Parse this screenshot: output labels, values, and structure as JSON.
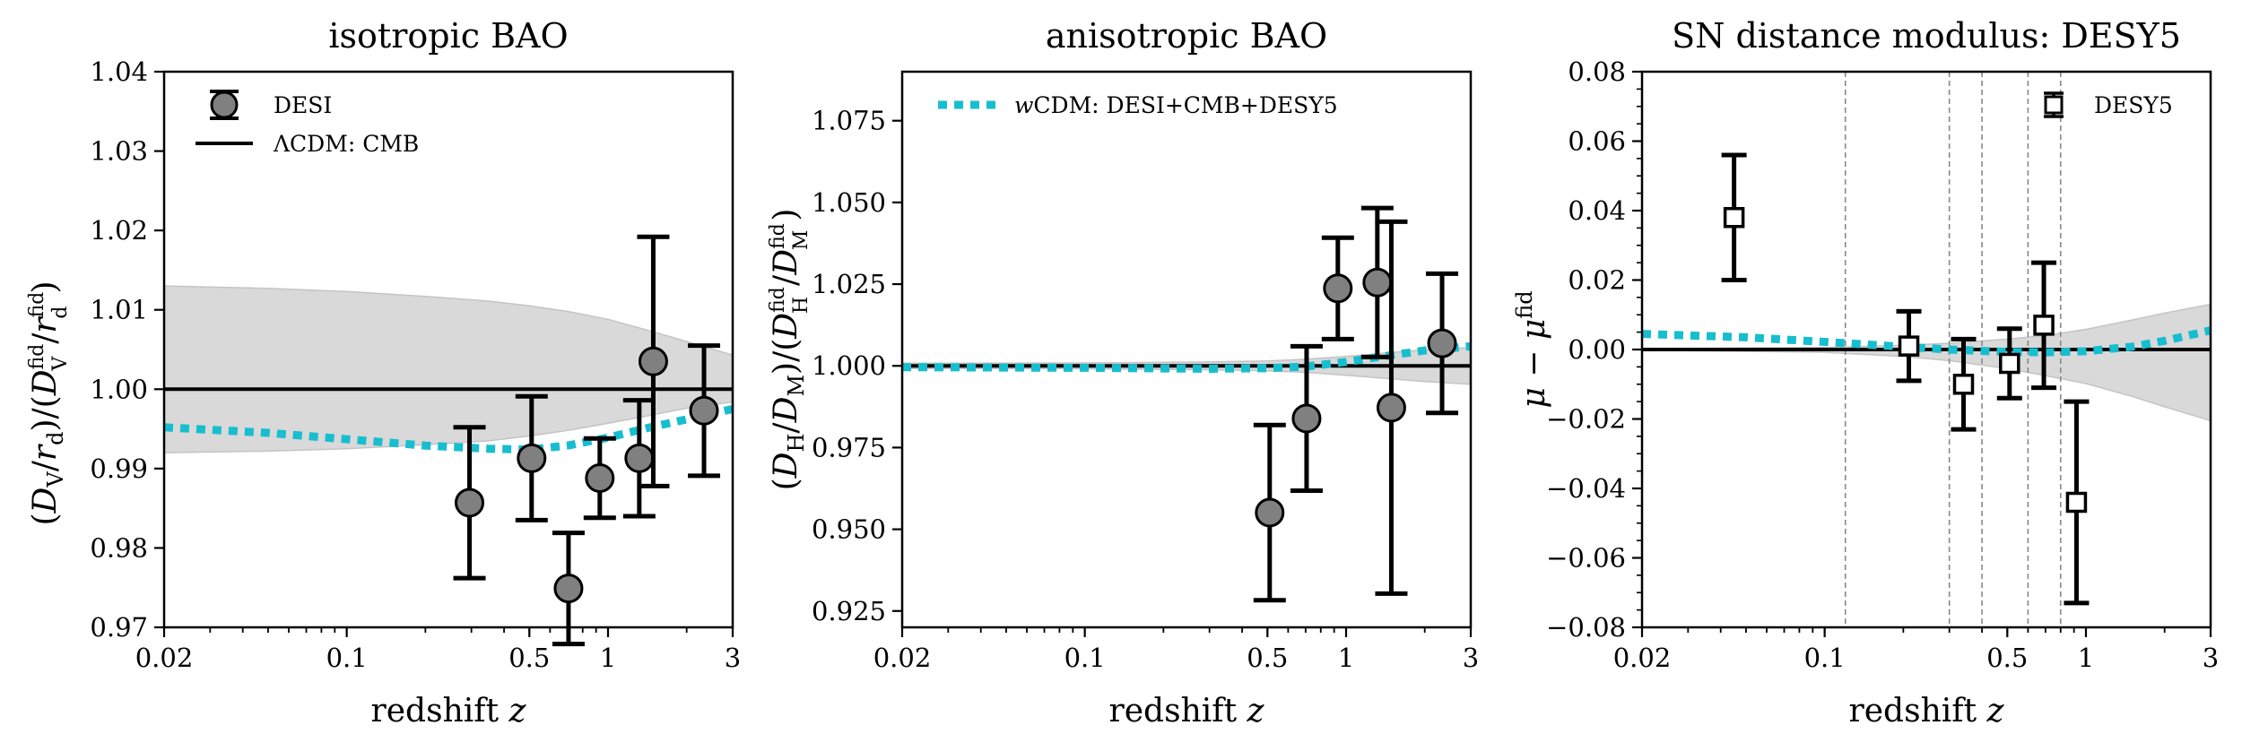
{
  "chart_data": [
    {
      "type": "scatter",
      "title": "isotropic BAO",
      "xlabel": "redshift z",
      "ylabel": "(D_V/r_d)/(D_V^fid/r_d^fid)",
      "xscale": "log",
      "xlim": [
        0.02,
        3
      ],
      "ylim": [
        0.97,
        1.04
      ],
      "xticks": [
        "0.02",
        "0.1",
        "0.5",
        "1",
        "3"
      ],
      "yticks": [
        "0.97",
        "0.98",
        "0.99",
        "1.00",
        "1.01",
        "1.02",
        "1.03",
        "1.04"
      ],
      "legend_position": "top-left",
      "series": [
        {
          "name": "DESI",
          "marker": "circle",
          "color": "#808080",
          "x": [
            0.295,
            0.51,
            0.706,
            0.93,
            1.317,
            1.49,
            2.33
          ],
          "y": [
            0.9857,
            0.9913,
            0.9749,
            0.9888,
            0.9913,
            1.0035,
            0.9973
          ],
          "yerr": [
            0.0095,
            0.0078,
            0.007,
            0.005,
            0.0073,
            0.0157,
            0.0082
          ]
        },
        {
          "name": "ΛCDM: CMB",
          "style": "line",
          "color": "#000000",
          "x": [
            0.02,
            3
          ],
          "y": [
            1.0,
            1.0
          ]
        },
        {
          "name": "wCDM: DESI+CMB+DESY5",
          "style": "dotted",
          "color": "#17becf",
          "x": [
            0.02,
            0.05,
            0.1,
            0.2,
            0.35,
            0.5,
            0.7,
            1.0,
            1.5,
            2.0,
            3.0
          ],
          "y": [
            0.9952,
            0.9945,
            0.9937,
            0.9929,
            0.9925,
            0.9924,
            0.9929,
            0.9939,
            0.9953,
            0.9962,
            0.9975
          ]
        }
      ],
      "band": {
        "color": "#d9d9d9",
        "x": [
          0.02,
          0.05,
          0.1,
          0.2,
          0.35,
          0.5,
          0.7,
          1.0,
          1.5,
          2.0,
          3.0
        ],
        "upper": [
          1.013,
          1.0127,
          1.0123,
          1.0117,
          1.0111,
          1.0105,
          1.0098,
          1.0088,
          1.0072,
          1.006,
          1.0043
        ],
        "lower": [
          0.992,
          0.9922,
          0.9925,
          0.993,
          0.9935,
          0.9941,
          0.9948,
          0.9957,
          0.9968,
          0.9976,
          0.9984
        ]
      }
    },
    {
      "type": "scatter",
      "title": "anisotropic BAO",
      "xlabel": "redshift z",
      "ylabel": "(D_H/D_M)/(D_H^fid/D_M^fid)",
      "xscale": "log",
      "xlim": [
        0.02,
        3
      ],
      "ylim": [
        0.92,
        1.09
      ],
      "xticks": [
        "0.02",
        "0.1",
        "0.5",
        "1",
        "3"
      ],
      "yticks": [
        "0.925",
        "0.950",
        "0.975",
        "1.000",
        "1.025",
        "1.050",
        "1.075"
      ],
      "legend_position": "top-left",
      "series": [
        {
          "name": "DESI",
          "marker": "circle",
          "color": "#808080",
          "x": [
            0.51,
            0.706,
            0.93,
            1.317,
            1.49,
            2.33
          ],
          "y": [
            0.9551,
            0.9839,
            1.0237,
            1.0255,
            0.9872,
            1.0069
          ],
          "yerr": [
            0.0268,
            0.0221,
            0.0155,
            0.0228,
            0.0569,
            0.0213
          ]
        },
        {
          "name": "ΛCDM: CMB",
          "style": "line",
          "color": "#000000",
          "x": [
            0.02,
            3
          ],
          "y": [
            1.0,
            1.0
          ]
        },
        {
          "name": "wCDM: DESI+CMB+DESY5",
          "style": "dotted",
          "color": "#17becf",
          "x": [
            0.02,
            0.1,
            0.3,
            0.5,
            0.7,
            1.0,
            1.5,
            2.0,
            3.0
          ],
          "y": [
            0.9996,
            0.9994,
            0.9991,
            0.9993,
            0.9998,
            1.0012,
            1.0033,
            1.0047,
            1.006
          ]
        }
      ],
      "band": {
        "color": "#d9d9d9",
        "x": [
          0.02,
          0.1,
          0.3,
          0.5,
          0.7,
          1.0,
          1.5,
          2.0,
          3.0
        ],
        "upper": [
          1.0008,
          1.0009,
          1.0012,
          1.0015,
          1.002,
          1.0029,
          1.0041,
          1.0049,
          1.0056
        ],
        "lower": [
          0.9992,
          0.9991,
          0.9988,
          0.9985,
          0.998,
          0.9971,
          0.996,
          0.9952,
          0.9944
        ]
      }
    },
    {
      "type": "scatter",
      "title": "SN distance modulus: DESY5",
      "xlabel": "redshift z",
      "ylabel": "μ − μ^fid",
      "xscale": "log",
      "xlim": [
        0.02,
        3
      ],
      "ylim": [
        -0.08,
        0.08
      ],
      "xticks": [
        "0.02",
        "0.1",
        "0.5",
        "1",
        "3"
      ],
      "yticks": [
        "−0.08",
        "−0.06",
        "−0.04",
        "−0.02",
        "0.00",
        "0.02",
        "0.04",
        "0.06",
        "0.08"
      ],
      "legend_position": "top-right",
      "vlines": [
        0.12,
        0.3,
        0.4,
        0.6,
        0.8
      ],
      "series": [
        {
          "name": "DESY5",
          "marker": "square",
          "color": "#ffffff",
          "x": [
            0.045,
            0.21,
            0.34,
            0.51,
            0.69,
            0.92
          ],
          "y": [
            0.038,
            0.001,
            -0.01,
            -0.004,
            0.007,
            -0.044
          ],
          "yerr": [
            0.018,
            0.01,
            0.013,
            0.01,
            0.018,
            0.029
          ]
        },
        {
          "name": "ΛCDM: CMB",
          "style": "line",
          "color": "#000000",
          "x": [
            0.02,
            3
          ],
          "y": [
            0.0,
            0.0
          ]
        },
        {
          "name": "wCDM: DESI+CMB+DESY5",
          "style": "dotted",
          "color": "#17becf",
          "x": [
            0.02,
            0.05,
            0.1,
            0.2,
            0.3,
            0.5,
            0.7,
            1.0,
            1.5,
            2.0,
            3.0
          ],
          "y": [
            0.0045,
            0.0035,
            0.0022,
            0.0008,
            0.0,
            -0.0007,
            -0.0008,
            -0.0005,
            0.0008,
            0.0025,
            0.0055
          ]
        }
      ],
      "band": {
        "color": "#d9d9d9",
        "x": [
          0.02,
          0.1,
          0.2,
          0.3,
          0.5,
          0.7,
          1.0,
          1.5,
          2.0,
          3.0
        ],
        "upper": [
          0.0002,
          0.0006,
          0.0012,
          0.0018,
          0.003,
          0.004,
          0.0058,
          0.0085,
          0.0105,
          0.013
        ],
        "lower": [
          -0.0002,
          -0.0008,
          -0.002,
          -0.0032,
          -0.0055,
          -0.0075,
          -0.0098,
          -0.0135,
          -0.0165,
          -0.0205
        ]
      }
    }
  ],
  "legends": {
    "panel1": {
      "markers_label": "DESI",
      "line_label": "ΛCDM: CMB"
    },
    "panel2": {
      "dotted_label": "wCDM: DESI+CMB+DESY5"
    },
    "panel3": {
      "markers_label": "DESY5"
    }
  }
}
